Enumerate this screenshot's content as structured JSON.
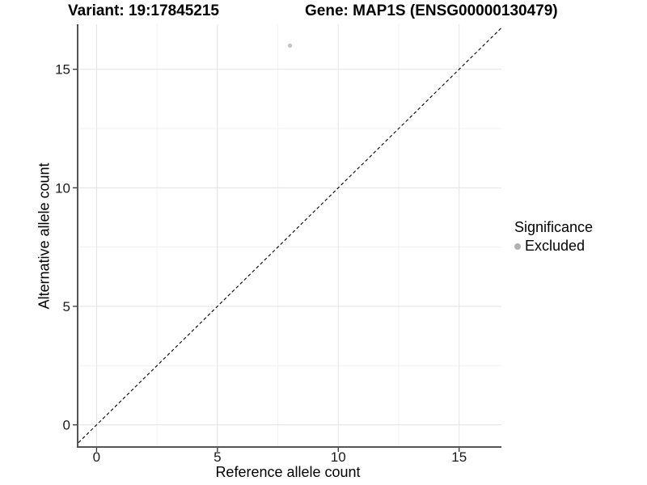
{
  "chart_data": {
    "type": "scatter",
    "title_left": "Variant: 19:17845215",
    "title_right": "Gene: MAP1S (ENSG00000130479)",
    "xlabel": "Reference allele count",
    "ylabel": "Alternative allele count",
    "xlim": [
      -0.75,
      16.75
    ],
    "ylim": [
      -0.9,
      16.9
    ],
    "xticks": [
      0,
      5,
      10,
      15
    ],
    "yticks": [
      0,
      5,
      10,
      15
    ],
    "minor_xticks": [
      2.5,
      7.5,
      12.5
    ],
    "minor_yticks": [
      2.5,
      7.5,
      12.5
    ],
    "grid": "major+minor on white background",
    "series": [
      {
        "name": "Excluded",
        "color": "#c5c5c5",
        "points": [
          {
            "x": 8,
            "y": 16
          }
        ]
      }
    ],
    "reference_line": {
      "type": "identity y=x",
      "slope": 1,
      "intercept": 0,
      "style": "dashed",
      "color": "#000000"
    },
    "legend": {
      "title": "Significance",
      "position": "right",
      "entries": [
        {
          "label": "Excluded",
          "color": "#b2b2b2"
        }
      ]
    }
  },
  "colors": {
    "background": "#ffffff",
    "grid_major": "#e3e3e3",
    "grid_minor": "#f1f1f1",
    "axis_line": "#555555",
    "tick_mark": "#333333",
    "tick_label": "#1a1a1a"
  }
}
